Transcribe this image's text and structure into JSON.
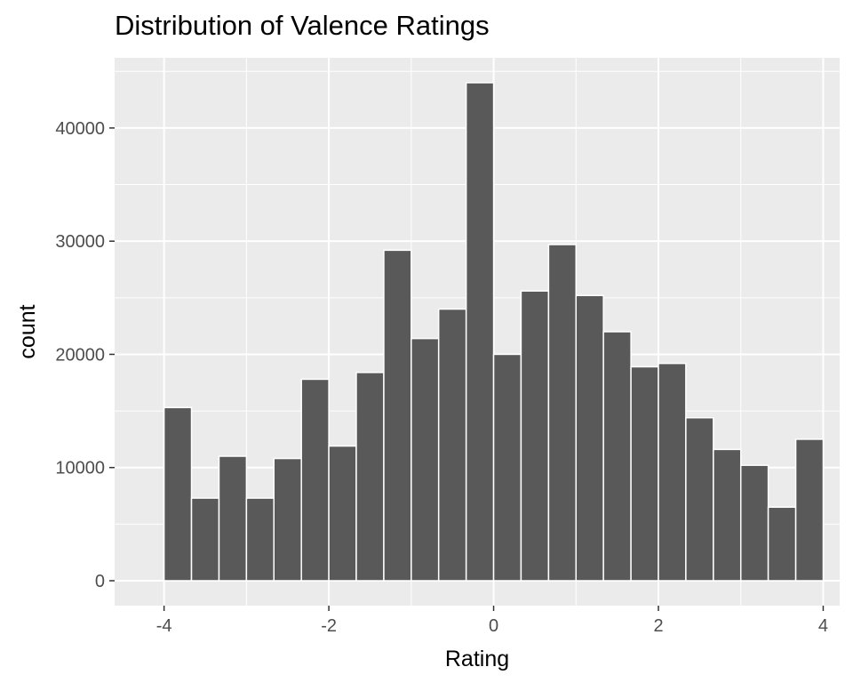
{
  "colors": {
    "panel_background": "#EBEBEB",
    "gridline": "#FFFFFF",
    "bar_fill": "#595959",
    "bar_outline": "#FFFFFF",
    "tick_text": "#4D4D4D",
    "tick_mark": "#333333",
    "title_text": "#000000"
  },
  "chart_data": {
    "type": "bar",
    "subtype": "histogram",
    "title": "Distribution of Valence Ratings",
    "xlabel": "Rating",
    "ylabel": "count",
    "xlim": [
      -4.6,
      4.2
    ],
    "ylim": [
      -2200,
      46200
    ],
    "x_ticks": [
      -4,
      -2,
      0,
      2,
      4
    ],
    "x_tick_labels": [
      "-4",
      "-2",
      "0",
      "2",
      "4"
    ],
    "y_ticks": [
      0,
      10000,
      20000,
      30000,
      40000
    ],
    "y_tick_labels": [
      "0",
      "10000",
      "20000",
      "30000",
      "40000"
    ],
    "grid": true,
    "legend": "none",
    "bin_width": 0.3333,
    "bins": [
      {
        "x_start": -4.0,
        "x_end": -3.667,
        "count": 15300
      },
      {
        "x_start": -3.667,
        "x_end": -3.333,
        "count": 7300
      },
      {
        "x_start": -3.333,
        "x_end": -3.0,
        "count": 11000
      },
      {
        "x_start": -3.0,
        "x_end": -2.667,
        "count": 7300
      },
      {
        "x_start": -2.667,
        "x_end": -2.333,
        "count": 10800
      },
      {
        "x_start": -2.333,
        "x_end": -2.0,
        "count": 17800
      },
      {
        "x_start": -2.0,
        "x_end": -1.667,
        "count": 11900
      },
      {
        "x_start": -1.667,
        "x_end": -1.333,
        "count": 18400
      },
      {
        "x_start": -1.333,
        "x_end": -1.0,
        "count": 29200
      },
      {
        "x_start": -1.0,
        "x_end": -0.667,
        "count": 21400
      },
      {
        "x_start": -0.667,
        "x_end": -0.333,
        "count": 24000
      },
      {
        "x_start": -0.333,
        "x_end": 0.0,
        "count": 44000
      },
      {
        "x_start": 0.0,
        "x_end": 0.333,
        "count": 20000
      },
      {
        "x_start": 0.333,
        "x_end": 0.667,
        "count": 25600
      },
      {
        "x_start": 0.667,
        "x_end": 1.0,
        "count": 29700
      },
      {
        "x_start": 1.0,
        "x_end": 1.333,
        "count": 25200
      },
      {
        "x_start": 1.333,
        "x_end": 1.667,
        "count": 22000
      },
      {
        "x_start": 1.667,
        "x_end": 2.0,
        "count": 18900
      },
      {
        "x_start": 2.0,
        "x_end": 2.333,
        "count": 19200
      },
      {
        "x_start": 2.333,
        "x_end": 2.667,
        "count": 14400
      },
      {
        "x_start": 2.667,
        "x_end": 3.0,
        "count": 11600
      },
      {
        "x_start": 3.0,
        "x_end": 3.333,
        "count": 10200
      },
      {
        "x_start": 3.333,
        "x_end": 3.667,
        "count": 6500
      },
      {
        "x_start": 3.667,
        "x_end": 4.0,
        "count": 12500
      }
    ]
  }
}
